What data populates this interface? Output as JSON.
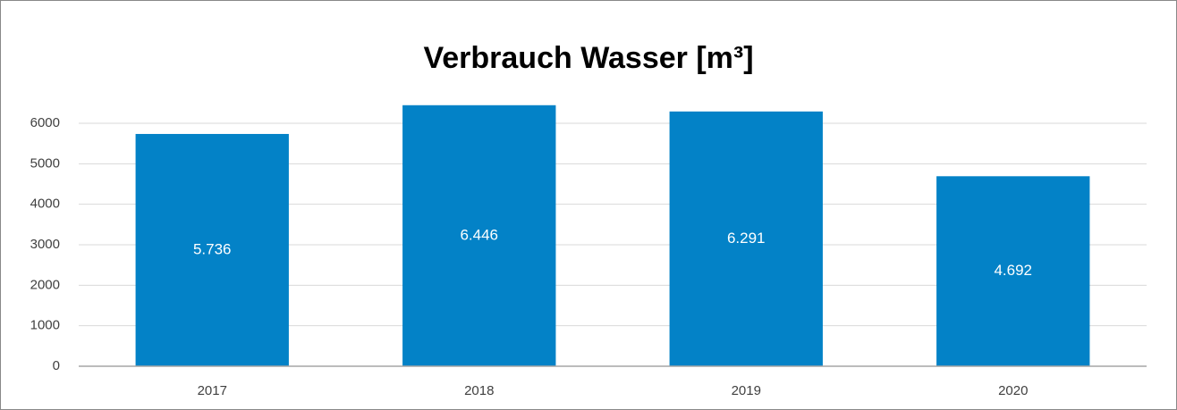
{
  "chart_data": {
    "type": "bar",
    "title": "Verbrauch Wasser [m³]",
    "categories": [
      "2017",
      "2018",
      "2019",
      "2020"
    ],
    "values": [
      5736,
      6446,
      6291,
      4692
    ],
    "value_labels": [
      "5.736",
      "6.446",
      "6.291",
      "4.692"
    ],
    "color": "#0382c7",
    "ylim": [
      0,
      6000
    ],
    "yticks": [
      0,
      1000,
      2000,
      3000,
      4000,
      5000,
      6000
    ],
    "grid": true
  }
}
